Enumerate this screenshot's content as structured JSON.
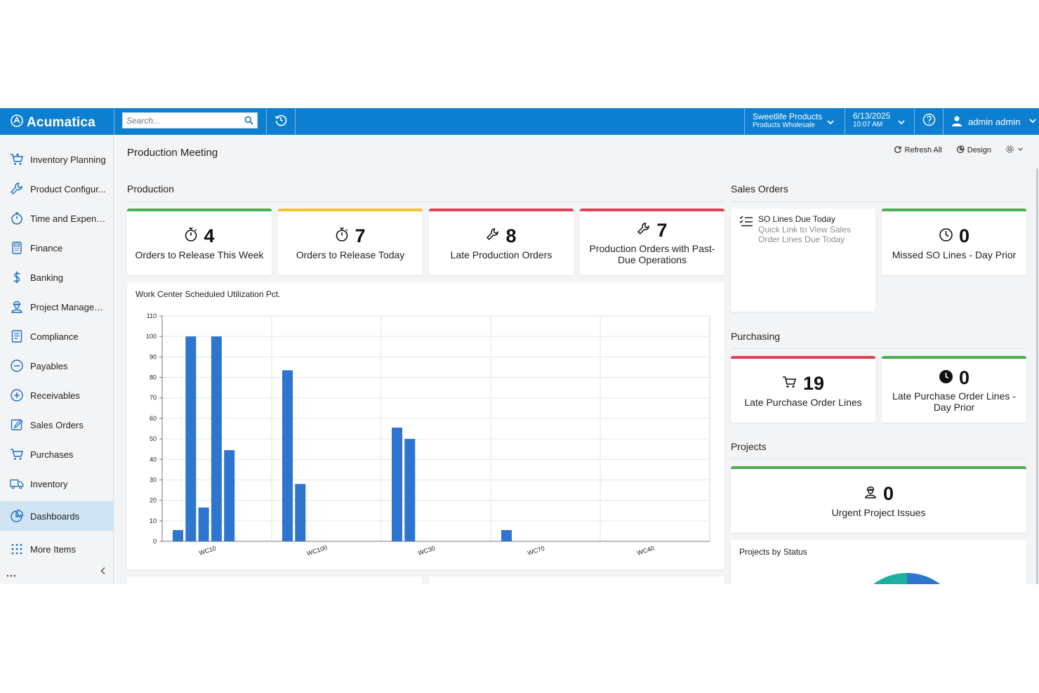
{
  "topbar": {
    "logo_text": "Acumatica",
    "search_placeholder": "Search...",
    "company_name": "Sweetlife Products",
    "company_branch": "Products Wholesale",
    "date": "6/13/2025",
    "time": "10:07 AM",
    "user_name": "admin admin"
  },
  "sidebar": {
    "items": [
      {
        "label": "Inventory Planning",
        "icon": "cart-plus-icon"
      },
      {
        "label": "Product Configur...",
        "icon": "wrench-icon"
      },
      {
        "label": "Time and Expenses",
        "icon": "stopwatch-icon"
      },
      {
        "label": "Finance",
        "icon": "calculator-icon"
      },
      {
        "label": "Banking",
        "icon": "dollar-icon"
      },
      {
        "label": "Project Managem...",
        "icon": "project-worker-icon"
      },
      {
        "label": "Compliance",
        "icon": "checklist-doc-icon"
      },
      {
        "label": "Payables",
        "icon": "minus-circle-icon"
      },
      {
        "label": "Receivables",
        "icon": "plus-circle-icon"
      },
      {
        "label": "Sales Orders",
        "icon": "edit-icon"
      },
      {
        "label": "Purchases",
        "icon": "cart-icon"
      },
      {
        "label": "Inventory",
        "icon": "truck-icon"
      },
      {
        "label": "Dashboards",
        "icon": "pie-chart-icon"
      },
      {
        "label": "More Items",
        "icon": "grid-dots-icon"
      }
    ],
    "active": "Dashboards"
  },
  "page": {
    "title": "Production Meeting",
    "refresh_label": "Refresh All",
    "design_label": "Design"
  },
  "production": {
    "title": "Production",
    "kpis": [
      {
        "value": "4",
        "label": "Orders to Release This Week",
        "color": "#4caf50",
        "icon": "stopwatch-icon"
      },
      {
        "value": "7",
        "label": "Orders to Release Today",
        "color": "#f4c430",
        "icon": "stopwatch-icon"
      },
      {
        "value": "8",
        "label": "Late Production Orders",
        "color": "#e04050",
        "icon": "wrench-icon"
      },
      {
        "value": "7",
        "label": "Production Orders with Past-Due Operations",
        "color": "#e04050",
        "icon": "wrench-icon"
      }
    ]
  },
  "sales_orders": {
    "title": "Sales Orders",
    "link_title": "SO Lines Due Today",
    "link_desc": "Quick Link to View Sales Order Lines Due Today",
    "missed": {
      "value": "0",
      "label": "Missed SO Lines - Day Prior",
      "color": "#4caf50"
    }
  },
  "purchasing": {
    "title": "Purchasing",
    "late_lines": {
      "value": "19",
      "label": "Late Purchase Order Lines",
      "color": "#e04050"
    },
    "late_prior": {
      "value": "0",
      "label": "Late Purchase Order Lines - Day Prior",
      "color": "#4caf50"
    }
  },
  "projects": {
    "title": "Projects",
    "urgent": {
      "value": "0",
      "label": "Urgent Project Issues",
      "color": "#4caf50"
    },
    "status_title": "Projects by Status",
    "pie_colors": [
      "#2e75d0",
      "#1aaf9f"
    ]
  },
  "chart_data": {
    "type": "bar",
    "title": "Work Center Scheduled Utilization Pct.",
    "xlabel": "",
    "ylabel": "",
    "ylim": [
      0,
      110
    ],
    "yticks": [
      0,
      10,
      20,
      30,
      40,
      50,
      60,
      70,
      80,
      90,
      100,
      110
    ],
    "categories": [
      "WC10",
      "WC100",
      "WC30",
      "WC70",
      "WC40"
    ],
    "bar_color": "#2e75d0",
    "bars": [
      {
        "category": "WC10",
        "value": 5.5
      },
      {
        "category": "WC10",
        "value": 100
      },
      {
        "category": "WC10",
        "value": 16.5
      },
      {
        "category": "WC10",
        "value": 100
      },
      {
        "category": "WC10",
        "value": 44.5
      },
      {
        "category": "WC100",
        "value": 83.5
      },
      {
        "category": "WC100",
        "value": 28
      },
      {
        "category": "WC30",
        "value": 55.5
      },
      {
        "category": "WC30",
        "value": 50
      },
      {
        "category": "WC70",
        "value": 5.5
      }
    ],
    "grid": true,
    "legend": "none"
  }
}
